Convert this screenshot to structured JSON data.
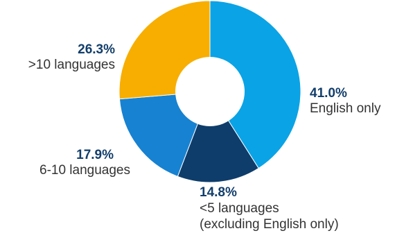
{
  "chart_data": {
    "type": "pie",
    "donut": true,
    "legend": "none",
    "slices": [
      {
        "value": 41.0,
        "label_value": "41.0%",
        "label_lines": [
          "English only"
        ],
        "color": "#0AA3E6"
      },
      {
        "value": 14.8,
        "label_value": "14.8%",
        "label_lines": [
          "<5 languages",
          "(excluding English only)"
        ],
        "color": "#0E3D6B"
      },
      {
        "value": 17.9,
        "label_value": "17.9%",
        "label_lines": [
          "6-10 languages"
        ],
        "color": "#1782D1"
      },
      {
        "value": 26.3,
        "label_value": "26.3%",
        "label_lines": [
          ">10 languages"
        ],
        "color": "#F7AE00"
      }
    ],
    "label_color": "#123E6B",
    "text_color": "#333333"
  }
}
